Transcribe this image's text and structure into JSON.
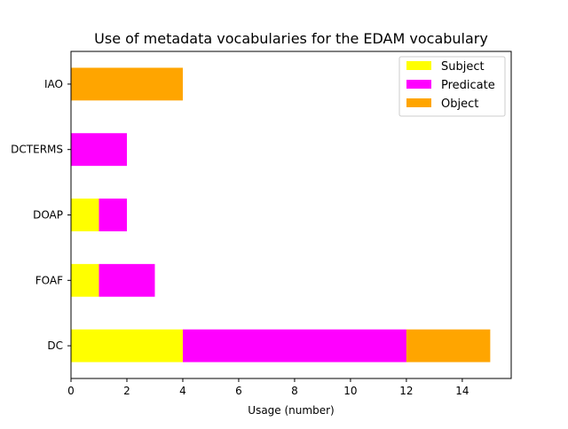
{
  "chart_data": {
    "type": "bar",
    "orientation": "horizontal",
    "stacked": true,
    "title": "Use of metadata vocabularies for the EDAM vocabulary",
    "xlabel": "Usage (number)",
    "ylabel": "",
    "categories": [
      "DC",
      "FOAF",
      "DOAP",
      "DCTERMS",
      "IAO"
    ],
    "series": [
      {
        "name": "Subject",
        "color": "#ffff00",
        "values": [
          4,
          1,
          1,
          0,
          0
        ]
      },
      {
        "name": "Predicate",
        "color": "#ff00ff",
        "values": [
          8,
          2,
          1,
          2,
          0
        ]
      },
      {
        "name": "Object",
        "color": "#ffa500",
        "values": [
          3,
          0,
          0,
          0,
          4
        ]
      }
    ],
    "xlim": [
      0,
      15.75
    ],
    "xticks": [
      0,
      2,
      4,
      6,
      8,
      10,
      12,
      14
    ],
    "grid": false,
    "legend_position": "top-right"
  }
}
